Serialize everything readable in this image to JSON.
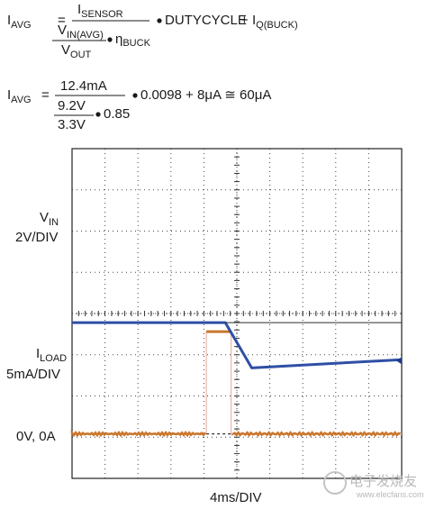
{
  "equations": {
    "eq1": {
      "lhs_main": "I",
      "lhs_sub": "AVG",
      "eq": "=",
      "num_main": "I",
      "num_sub": "SENSOR",
      "den_num_main": "V",
      "den_num_sub": "IN(AVG)",
      "den_den_main": "V",
      "den_den_sub": "OUT",
      "eta_main": "η",
      "eta_sub": "BUCK",
      "dutycycle": "DUTYCYCLE",
      "plus": "+",
      "iq_main": "I",
      "iq_sub": "Q(BUCK)"
    },
    "eq2": {
      "lhs_main": "I",
      "lhs_sub": "AVG",
      "eq": "=",
      "num": "12.4mA",
      "den_num": "9.2V",
      "den_den": "3.3V",
      "eta": "0.85",
      "tail": "0.0098 + 8μA ≅ 60μA"
    }
  },
  "labels": {
    "vin_main": "V",
    "vin_sub": "IN",
    "vin_scale": "2V/DIV",
    "iload_main": "I",
    "iload_sub": "LOAD",
    "iload_scale": "5mA/DIV",
    "zero": "0V, 0A",
    "timebase": "4ms/DIV"
  },
  "watermark": {
    "text_cn": "电子发烧友",
    "text_url": "www.elecfans.com"
  },
  "colors": {
    "vin_trace": "#2f4fa6",
    "iload_trace": "#c9762d",
    "iload_pulse": "#f0b3a6",
    "marker": "#1f3a8a"
  },
  "chart_data": {
    "type": "line",
    "xlabel": "4ms/DIV",
    "xlim": [
      0,
      40
    ],
    "divisions": {
      "x": 10,
      "y": 8
    },
    "grid": true,
    "series": [
      {
        "name": "VIN",
        "scale": "2V/DIV",
        "x": [
          0,
          18.6,
          21.8,
          40
        ],
        "y": [
          5.4,
          5.4,
          3.2,
          3.6
        ]
      },
      {
        "name": "ILOAD",
        "scale": "5mA/DIV",
        "x": [
          0,
          16.3,
          16.3,
          19.3,
          19.3,
          40
        ],
        "y": [
          0,
          0,
          12.4,
          12.4,
          0,
          0
        ]
      }
    ]
  }
}
